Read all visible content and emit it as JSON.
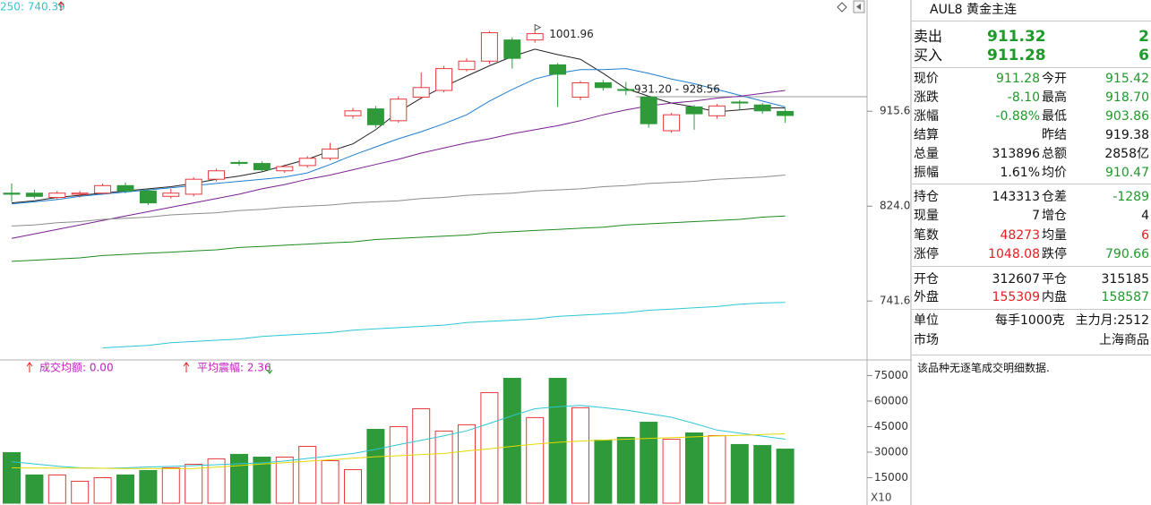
{
  "chart_data": [
    {
      "type": "candlestick",
      "indicator_label": "250: 740.39",
      "log_scale": true,
      "ylim": [
        696,
        1036
      ],
      "yticks": [
        915.6,
        {
          "value": 824,
          "label": "824.0"
        },
        741.6
      ],
      "up_color": "#e8383d",
      "down_color": "#2f9a3a",
      "open": [
        836,
        836,
        832,
        835,
        836,
        843,
        838,
        833,
        835,
        849,
        865,
        864,
        857,
        862,
        869,
        911,
        918,
        906,
        930,
        937,
        959,
        968,
        991,
        991,
        964,
        930,
        945,
        938,
        930,
        896,
        920,
        911,
        925,
        922,
        915.42
      ],
      "high": [
        845,
        839,
        838,
        838,
        845,
        846,
        840,
        840,
        851,
        859,
        867,
        866,
        863,
        871,
        884,
        919,
        921,
        931,
        956,
        963,
        971,
        1001,
        994,
        1001.96,
        966,
        947,
        948,
        946,
        931.2,
        914,
        922,
        923,
        927,
        924,
        918.7
      ],
      "low": [
        828,
        831,
        830,
        832,
        835,
        836,
        825,
        831,
        833,
        847,
        862,
        856,
        855,
        860,
        867,
        908,
        899,
        904,
        928,
        935,
        957,
        965,
        960,
        988,
        920,
        927,
        937,
        932,
        899,
        894,
        897,
        908,
        917,
        913,
        903.86
      ],
      "close": [
        835,
        833,
        836,
        836,
        843,
        838,
        827,
        836,
        849,
        857,
        864,
        858,
        861,
        869,
        878,
        916,
        902,
        928,
        940,
        960,
        968,
        999,
        971,
        998,
        954,
        945,
        940,
        937,
        903,
        912,
        913,
        921,
        924,
        916,
        911.28
      ],
      "lines": [
        {
          "color": "#222222",
          "values": [
            827,
            829,
            832,
            834,
            836,
            838,
            840,
            842,
            845,
            849,
            852,
            856,
            862,
            868,
            876,
            883,
            897,
            915,
            929,
            941,
            952,
            963,
            973,
            981,
            975,
            970,
            955,
            939,
            931,
            924,
            920,
            915,
            917,
            919,
            919
          ]
        },
        {
          "color": "#1f7fd0",
          "values": [
            826,
            828,
            830,
            833,
            835,
            837,
            839,
            841,
            843,
            845,
            847,
            849,
            851,
            855,
            863,
            872,
            880,
            888,
            895,
            903,
            912,
            926,
            938,
            949,
            955,
            959,
            959,
            960,
            955,
            949,
            944,
            938,
            932,
            926,
            920
          ]
        },
        {
          "color": "#7a1f8f",
          "values": [
            795,
            799,
            803,
            807,
            811,
            815,
            819,
            823,
            827,
            831,
            835,
            840,
            844,
            849,
            853,
            858,
            863,
            868,
            874,
            879,
            884,
            888,
            893,
            897,
            901,
            906,
            912,
            917,
            921,
            924,
            926,
            929,
            931,
            934,
            937
          ]
        },
        {
          "color": "#8c8c8c",
          "values": [
            806,
            807,
            809,
            810,
            812,
            813,
            814,
            816,
            817,
            818,
            820,
            821,
            823,
            824,
            825,
            827,
            828,
            829,
            831,
            832,
            834,
            835,
            836,
            838,
            839,
            840,
            842,
            843,
            845,
            846,
            847,
            849,
            850,
            851,
            853
          ]
        },
        {
          "color": "#1e8a1e",
          "values": [
            775,
            776,
            777,
            778,
            780,
            781,
            782,
            783,
            784,
            785,
            787,
            788,
            789,
            790,
            791,
            792,
            794,
            795,
            796,
            797,
            798,
            800,
            801,
            802,
            803,
            804,
            805,
            807,
            808,
            809,
            810,
            811,
            812,
            814,
            815
          ]
        },
        {
          "color": "#2fc6d4",
          "values": [
            null,
            null,
            null,
            null,
            704,
            705,
            706,
            708,
            709,
            710,
            711,
            713,
            714,
            715,
            716,
            718,
            719,
            720,
            721,
            722,
            724,
            725,
            726,
            727,
            729,
            730,
            731,
            732,
            734,
            735,
            736,
            737,
            739,
            740,
            740.39
          ]
        }
      ],
      "annotations": [
        "931.20 - 928.56"
      ]
    },
    {
      "type": "volume",
      "indicators": [
        "成交均额: 0.00",
        "平均震幅: 2.36"
      ],
      "unit_label": "X10",
      "ylim": [
        0,
        82600
      ],
      "yticks": [
        15000,
        30000,
        45000,
        60000,
        75000
      ],
      "values": [
        29700,
        16600,
        16600,
        12900,
        15000,
        16600,
        19200,
        20800,
        22900,
        26100,
        28700,
        27100,
        27100,
        33400,
        25000,
        19700,
        43400,
        45000,
        55500,
        42400,
        46100,
        65000,
        73400,
        50300,
        73400,
        56100,
        37100,
        38700,
        47600,
        37600,
        41300,
        39700,
        34500,
        33900,
        31800
      ],
      "lines": [
        {
          "color": "#2fc6d4",
          "values": [
            24400,
            23100,
            21800,
            20800,
            20500,
            20800,
            21300,
            21600,
            22100,
            22600,
            23200,
            23700,
            24800,
            26300,
            27800,
            29200,
            31600,
            34400,
            37000,
            39600,
            42500,
            46900,
            51400,
            55500,
            56700,
            57500,
            56200,
            54700,
            52600,
            50500,
            46900,
            43000,
            41200,
            39400,
            37600
          ]
        },
        {
          "color": "#e6d800",
          "values": [
            20800,
            20700,
            20700,
            20600,
            20500,
            20400,
            20400,
            20300,
            20400,
            21200,
            22100,
            23000,
            23800,
            24700,
            25500,
            26400,
            27300,
            27900,
            28600,
            29200,
            30700,
            32000,
            33400,
            34700,
            35800,
            36500,
            37100,
            37600,
            38100,
            38500,
            39000,
            39500,
            39900,
            40400,
            40800
          ]
        }
      ]
    }
  ],
  "quote": {
    "header": "AUL8 黄金主连",
    "bid_ask": [
      [
        "卖出",
        "911.32",
        "2"
      ],
      [
        "买入",
        "911.28",
        "6"
      ]
    ],
    "rows": [
      [
        "现价",
        "911.28",
        "今开",
        "915.42"
      ],
      [
        "涨跌",
        "-8.10",
        "最高",
        "918.70"
      ],
      [
        "涨幅",
        "-0.88%",
        "最低",
        "903.86"
      ],
      [
        "结算",
        null,
        "昨结",
        "919.38"
      ],
      [
        "总量",
        "313896",
        "总额",
        "2858亿"
      ],
      [
        "振幅",
        "1.61%",
        "均价",
        "910.47"
      ],
      [
        "持仓",
        "143313",
        "仓差",
        "-1289"
      ],
      [
        "现量",
        "7",
        "增仓",
        "4"
      ],
      [
        "笔数",
        "48273",
        "均量",
        "6"
      ],
      [
        "涨停",
        "1048.08",
        "跌停",
        "790.66"
      ],
      [
        "开仓",
        "312607",
        "平仓",
        "315185"
      ],
      [
        "外盘",
        "155309",
        "内盘",
        "158587"
      ]
    ],
    "info_rows": [
      [
        "单位",
        "每手1000克",
        "主力月:2512"
      ],
      [
        "市场",
        "上海商品"
      ]
    ],
    "note": "该品种无逐笔成交明细数据."
  }
}
